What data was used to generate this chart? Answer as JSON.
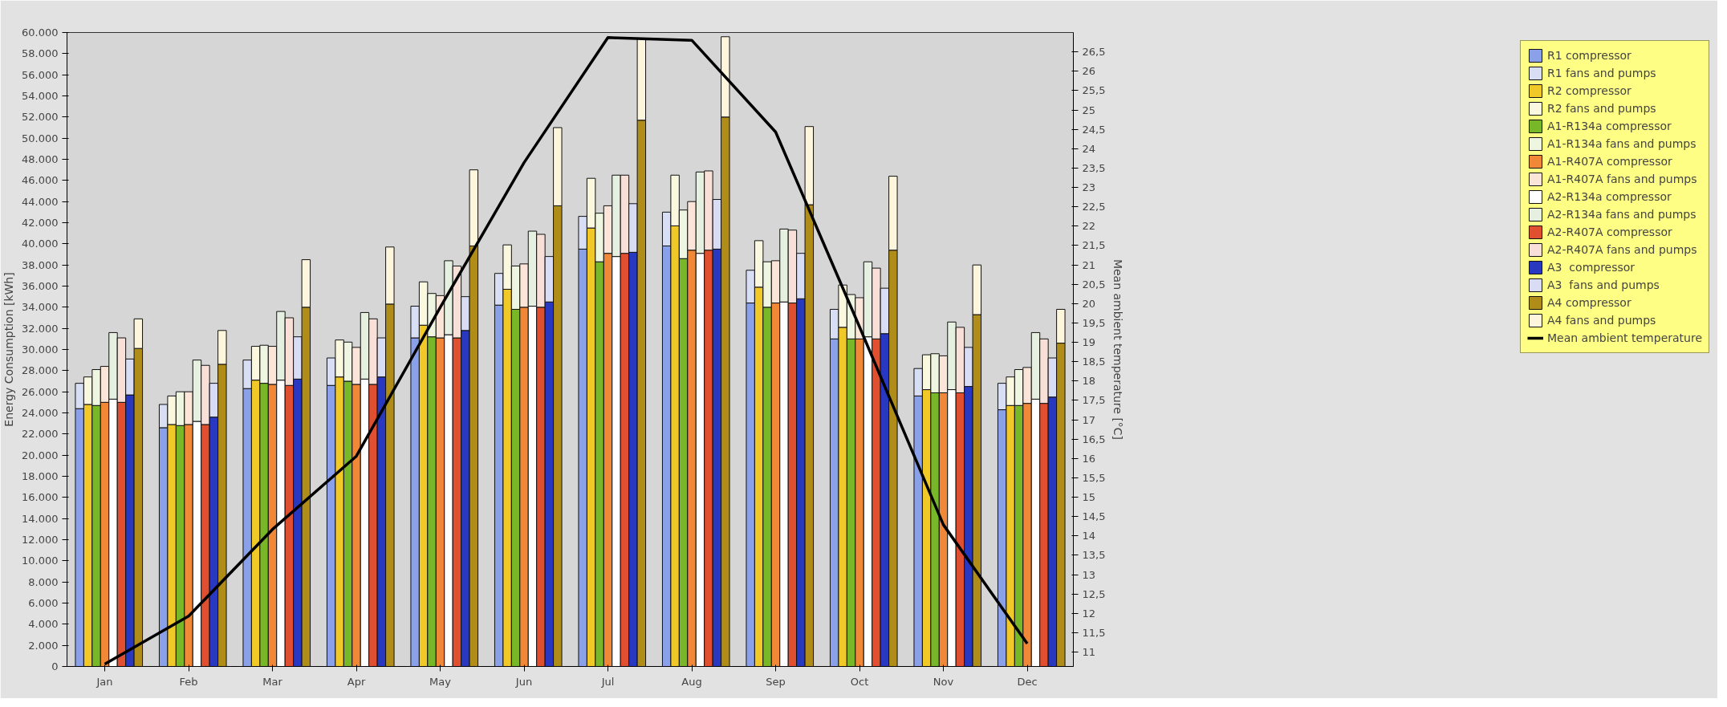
{
  "chart_data": {
    "type": "bar",
    "stacked": true,
    "ylabel": "Energy Consumption [kWh]",
    "y2label": "Mean ambient temperature [°C]",
    "categories": [
      null,
      null,
      null,
      null,
      "Jan",
      null,
      null,
      null,
      null,
      null,
      null,
      null,
      null,
      null,
      "Feb",
      null,
      null,
      null,
      null,
      null,
      null,
      null,
      null,
      null,
      "Mar",
      null,
      null,
      null,
      null,
      null,
      null,
      null,
      null,
      null,
      "Apr",
      null,
      null,
      null,
      null,
      null,
      null,
      null,
      null,
      null,
      "May",
      null,
      null,
      null,
      null,
      null,
      null,
      null,
      null,
      null,
      "Jun",
      null,
      null,
      null,
      null,
      null,
      null,
      null,
      null,
      null,
      "Jul",
      null,
      null,
      null,
      null,
      null,
      null,
      null,
      null,
      null,
      "Aug",
      null,
      null,
      null,
      null,
      null,
      null,
      null,
      null,
      null,
      "Sep",
      null,
      null,
      null,
      null,
      null,
      null,
      null,
      null,
      null,
      "Oct",
      null,
      null,
      null,
      null,
      null,
      null,
      null,
      null,
      null,
      "Nov",
      null,
      null,
      null,
      null,
      null,
      null,
      null,
      null,
      null,
      "Dec",
      null,
      null,
      null,
      null,
      null
    ],
    "ylim": [
      0,
      60000
    ],
    "yticks": [
      {
        "value": 0,
        "label": "0"
      },
      {
        "value": 2000,
        "label": "2.000"
      },
      {
        "value": 4000,
        "label": "4.000"
      },
      {
        "value": 6000,
        "label": "6.000"
      },
      {
        "value": 8000,
        "label": "8.000"
      },
      {
        "value": 10000,
        "label": "10.000"
      },
      {
        "value": 12000,
        "label": "12.000"
      },
      {
        "value": 14000,
        "label": "14.000"
      },
      {
        "value": 16000,
        "label": "16.000"
      },
      {
        "value": 18000,
        "label": "18.000"
      },
      {
        "value": 20000,
        "label": "20.000"
      },
      {
        "value": 22000,
        "label": "22.000"
      },
      {
        "value": 24000,
        "label": "24.000"
      },
      {
        "value": 26000,
        "label": "26.000"
      },
      {
        "value": 28000,
        "label": "28.000"
      },
      {
        "value": 30000,
        "label": "30.000"
      },
      {
        "value": 32000,
        "label": "32.000"
      },
      {
        "value": 34000,
        "label": "34.000"
      },
      {
        "value": 36000,
        "label": "36.000"
      },
      {
        "value": 38000,
        "label": "38.000"
      },
      {
        "value": 40000,
        "label": "40.000"
      },
      {
        "value": 42000,
        "label": "42.000"
      },
      {
        "value": 44000,
        "label": "44.000"
      },
      {
        "value": 46000,
        "label": "46.000"
      },
      {
        "value": 48000,
        "label": "48.000"
      },
      {
        "value": 50000,
        "label": "50.000"
      },
      {
        "value": 52000,
        "label": "52.000"
      },
      {
        "value": 54000,
        "label": "54.000"
      },
      {
        "value": 56000,
        "label": "56.000"
      },
      {
        "value": 58000,
        "label": "58.000"
      },
      {
        "value": 60000,
        "label": "60.000"
      }
    ],
    "y2lim": [
      10.63,
      27.0
    ],
    "y2ticks": [
      11,
      {
        "value": 11.5,
        "label": "11,5"
      },
      12,
      {
        "value": 12.5,
        "label": "12,5"
      },
      13,
      {
        "value": 13.5,
        "label": "13,5"
      },
      14,
      {
        "value": 14.5,
        "label": "14,5"
      },
      15,
      {
        "value": 15.5,
        "label": "15,5"
      },
      16,
      {
        "value": 16.5,
        "label": "16,5"
      },
      17,
      {
        "value": 17.5,
        "label": "17,5"
      },
      18,
      {
        "value": 18.5,
        "label": "18,5"
      },
      19,
      {
        "value": 19.5,
        "label": "19,5"
      },
      20,
      {
        "value": 20.5,
        "label": "20,5"
      },
      21,
      {
        "value": 21.5,
        "label": "21,5"
      },
      22,
      {
        "value": 22.5,
        "label": "22,5"
      },
      23,
      {
        "value": 23.5,
        "label": "23,5"
      },
      24,
      {
        "value": 24.5,
        "label": "24,5"
      },
      25,
      {
        "value": 25.5,
        "label": "25,5"
      },
      26,
      {
        "value": 26.5,
        "label": "26,5"
      }
    ],
    "grid": false,
    "legend": "right",
    "series": [
      {
        "name": "R1 compressor",
        "color": "#8aa0e8",
        "values": [
          null,
          24400,
          null,
          null,
          null,
          null,
          null,
          null,
          null,
          null,
          null,
          22600,
          null,
          null,
          null,
          null,
          null,
          null,
          null,
          null,
          null,
          26300,
          null,
          null,
          null,
          null,
          null,
          null,
          null,
          null,
          null,
          26600,
          null,
          null,
          null,
          null,
          null,
          null,
          null,
          null,
          null,
          31100,
          null,
          null,
          null,
          null,
          null,
          null,
          null,
          null,
          null,
          34200,
          null,
          null,
          null,
          null,
          null,
          null,
          null,
          null,
          null,
          39500,
          null,
          null,
          null,
          null,
          null,
          null,
          null,
          null,
          null,
          39800,
          null,
          null,
          null,
          null,
          null,
          null,
          null,
          null,
          null,
          34400,
          null,
          null,
          null,
          null,
          null,
          null,
          null,
          null,
          null,
          31000,
          null,
          null,
          null,
          null,
          null,
          null,
          null,
          null,
          null,
          25600,
          null,
          null,
          null,
          null,
          null,
          null,
          null,
          null,
          null,
          24300,
          null,
          null,
          null,
          null,
          null,
          null,
          null,
          null
        ]
      },
      {
        "name": "R1 fans and pumps",
        "color": "#d8dff5",
        "values": [
          null,
          2400,
          null,
          null,
          null,
          null,
          null,
          null,
          null,
          null,
          null,
          2200,
          null,
          null,
          null,
          null,
          null,
          null,
          null,
          null,
          null,
          2700,
          null,
          null,
          null,
          null,
          null,
          null,
          null,
          null,
          null,
          2600,
          null,
          null,
          null,
          null,
          null,
          null,
          null,
          null,
          null,
          3000,
          null,
          null,
          null,
          null,
          null,
          null,
          null,
          null,
          null,
          3000,
          null,
          null,
          null,
          null,
          null,
          null,
          null,
          null,
          null,
          3100,
          null,
          null,
          null,
          null,
          null,
          null,
          null,
          null,
          null,
          3200,
          null,
          null,
          null,
          null,
          null,
          null,
          null,
          null,
          null,
          3100,
          null,
          null,
          null,
          null,
          null,
          null,
          null,
          null,
          null,
          2800,
          null,
          null,
          null,
          null,
          null,
          null,
          null,
          null,
          null,
          2600,
          null,
          null,
          null,
          null,
          null,
          null,
          null,
          null,
          null,
          2500,
          null,
          null,
          null,
          null,
          null,
          null,
          null,
          null
        ]
      },
      {
        "name": "R2 compressor",
        "color": "#f0c828",
        "values": [
          null,
          null,
          24800,
          null,
          null,
          null,
          null,
          null,
          null,
          null,
          null,
          null,
          22900,
          null,
          null,
          null,
          null,
          null,
          null,
          null,
          null,
          null,
          27100,
          null,
          null,
          null,
          null,
          null,
          null,
          null,
          null,
          null,
          27400,
          null,
          null,
          null,
          null,
          null,
          null,
          null,
          null,
          null,
          32300,
          null,
          null,
          null,
          null,
          null,
          null,
          null,
          null,
          null,
          35700,
          null,
          null,
          null,
          null,
          null,
          null,
          null,
          null,
          null,
          41500,
          null,
          null,
          null,
          null,
          null,
          null,
          null,
          null,
          null,
          41700,
          null,
          null,
          null,
          null,
          null,
          null,
          null,
          null,
          null,
          35900,
          null,
          null,
          null,
          null,
          null,
          null,
          null,
          null,
          null,
          32100,
          null,
          null,
          null,
          null,
          null,
          null,
          null,
          null,
          null,
          26200,
          null,
          null,
          null,
          null,
          null,
          null,
          null,
          null,
          null,
          24700,
          null,
          null,
          null,
          null,
          null,
          null,
          null
        ]
      },
      {
        "name": "R2 fans and pumps",
        "color": "#fbf8e0",
        "values": [
          null,
          null,
          2600,
          null,
          null,
          null,
          null,
          null,
          null,
          null,
          null,
          null,
          2700,
          null,
          null,
          null,
          null,
          null,
          null,
          null,
          null,
          null,
          3200,
          null,
          null,
          null,
          null,
          null,
          null,
          null,
          null,
          null,
          3500,
          null,
          null,
          null,
          null,
          null,
          null,
          null,
          null,
          null,
          4100,
          null,
          null,
          null,
          null,
          null,
          null,
          null,
          null,
          null,
          4200,
          null,
          null,
          null,
          null,
          null,
          null,
          null,
          null,
          null,
          4700,
          null,
          null,
          null,
          null,
          null,
          null,
          null,
          null,
          null,
          4800,
          null,
          null,
          null,
          null,
          null,
          null,
          null,
          null,
          null,
          4400,
          null,
          null,
          null,
          null,
          null,
          null,
          null,
          null,
          null,
          4000,
          null,
          null,
          null,
          null,
          null,
          null,
          null,
          null,
          null,
          3300,
          null,
          null,
          null,
          null,
          null,
          null,
          null,
          null,
          null,
          2700,
          null,
          null,
          null,
          null,
          null,
          null,
          null
        ]
      },
      {
        "name": "A1-R134a compressor",
        "color": "#78b828",
        "values": [
          null,
          null,
          null,
          24700,
          null,
          null,
          null,
          null,
          null,
          null,
          null,
          null,
          null,
          22800,
          null,
          null,
          null,
          null,
          null,
          null,
          null,
          null,
          null,
          26800,
          null,
          null,
          null,
          null,
          null,
          null,
          null,
          null,
          null,
          27000,
          null,
          null,
          null,
          null,
          null,
          null,
          null,
          null,
          null,
          31200,
          null,
          null,
          null,
          null,
          null,
          null,
          null,
          null,
          null,
          33800,
          null,
          null,
          null,
          null,
          null,
          null,
          null,
          null,
          null,
          38300,
          null,
          null,
          null,
          null,
          null,
          null,
          null,
          null,
          null,
          38600,
          null,
          null,
          null,
          null,
          null,
          null,
          null,
          null,
          null,
          34000,
          null,
          null,
          null,
          null,
          null,
          null,
          null,
          null,
          null,
          31000,
          null,
          null,
          null,
          null,
          null,
          null,
          null,
          null,
          null,
          25900,
          null,
          null,
          null,
          null,
          null,
          null,
          null,
          null,
          null,
          24700,
          null,
          null,
          null,
          null,
          null,
          null
        ]
      },
      {
        "name": "A1-R134a fans and pumps",
        "color": "#eef5e0",
        "values": [
          null,
          null,
          null,
          3400,
          null,
          null,
          null,
          null,
          null,
          null,
          null,
          null,
          null,
          3200,
          null,
          null,
          null,
          null,
          null,
          null,
          null,
          null,
          null,
          3600,
          null,
          null,
          null,
          null,
          null,
          null,
          null,
          null,
          null,
          3700,
          null,
          null,
          null,
          null,
          null,
          null,
          null,
          null,
          null,
          4100,
          null,
          null,
          null,
          null,
          null,
          null,
          null,
          null,
          null,
          4100,
          null,
          null,
          null,
          null,
          null,
          null,
          null,
          null,
          null,
          4600,
          null,
          null,
          null,
          null,
          null,
          null,
          null,
          null,
          null,
          4600,
          null,
          null,
          null,
          null,
          null,
          null,
          null,
          null,
          null,
          4300,
          null,
          null,
          null,
          null,
          null,
          null,
          null,
          null,
          null,
          4200,
          null,
          null,
          null,
          null,
          null,
          null,
          null,
          null,
          null,
          3700,
          null,
          null,
          null,
          null,
          null,
          null,
          null,
          null,
          null,
          3400,
          null,
          null,
          null,
          null,
          null,
          null
        ]
      },
      {
        "name": "A1-R407A compressor",
        "color": "#f08838",
        "values": [
          null,
          null,
          null,
          null,
          25000,
          null,
          null,
          null,
          null,
          null,
          null,
          null,
          null,
          null,
          22900,
          null,
          null,
          null,
          null,
          null,
          null,
          null,
          null,
          null,
          26700,
          null,
          null,
          null,
          null,
          null,
          null,
          null,
          null,
          null,
          26700,
          null,
          null,
          null,
          null,
          null,
          null,
          null,
          null,
          null,
          31100,
          null,
          null,
          null,
          null,
          null,
          null,
          null,
          null,
          null,
          34000,
          null,
          null,
          null,
          null,
          null,
          null,
          null,
          null,
          null,
          39100,
          null,
          null,
          null,
          null,
          null,
          null,
          null,
          null,
          null,
          39400,
          null,
          null,
          null,
          null,
          null,
          null,
          null,
          null,
          null,
          34400,
          null,
          null,
          null,
          null,
          null,
          null,
          null,
          null,
          null,
          31000,
          null,
          null,
          null,
          null,
          null,
          null,
          null,
          null,
          null,
          25900,
          null,
          null,
          null,
          null,
          null,
          null,
          null,
          null,
          null,
          24900,
          null,
          null,
          null,
          null,
          null
        ]
      },
      {
        "name": "A1-R407A fans and pumps",
        "color": "#fbe5d8",
        "values": [
          null,
          null,
          null,
          null,
          3400,
          null,
          null,
          null,
          null,
          null,
          null,
          null,
          null,
          null,
          3100,
          null,
          null,
          null,
          null,
          null,
          null,
          null,
          null,
          null,
          3600,
          null,
          null,
          null,
          null,
          null,
          null,
          null,
          null,
          null,
          3500,
          null,
          null,
          null,
          null,
          null,
          null,
          null,
          null,
          null,
          4000,
          null,
          null,
          null,
          null,
          null,
          null,
          null,
          null,
          null,
          4100,
          null,
          null,
          null,
          null,
          null,
          null,
          null,
          null,
          null,
          4500,
          null,
          null,
          null,
          null,
          null,
          null,
          null,
          null,
          null,
          4600,
          null,
          null,
          null,
          null,
          null,
          null,
          null,
          null,
          null,
          4000,
          null,
          null,
          null,
          null,
          null,
          null,
          null,
          null,
          null,
          3900,
          null,
          null,
          null,
          null,
          null,
          null,
          null,
          null,
          null,
          3500,
          null,
          null,
          null,
          null,
          null,
          null,
          null,
          null,
          null,
          3400,
          null,
          null,
          null,
          null,
          null
        ]
      },
      {
        "name": "A2-R134a compressor",
        "color": "#ffffff",
        "values": [
          null,
          null,
          null,
          null,
          null,
          25300,
          null,
          null,
          null,
          null,
          null,
          null,
          null,
          null,
          null,
          23200,
          null,
          null,
          null,
          null,
          null,
          null,
          null,
          null,
          null,
          27100,
          null,
          null,
          null,
          null,
          null,
          null,
          null,
          null,
          null,
          27200,
          null,
          null,
          null,
          null,
          null,
          null,
          null,
          null,
          null,
          31400,
          null,
          null,
          null,
          null,
          null,
          null,
          null,
          null,
          null,
          34100,
          null,
          null,
          null,
          null,
          null,
          null,
          null,
          null,
          null,
          38800,
          null,
          null,
          null,
          null,
          null,
          null,
          null,
          null,
          null,
          39100,
          null,
          null,
          null,
          null,
          null,
          null,
          null,
          null,
          null,
          34500,
          null,
          null,
          null,
          null,
          null,
          null,
          null,
          null,
          null,
          31200,
          null,
          null,
          null,
          null,
          null,
          null,
          null,
          null,
          null,
          26200,
          null,
          null,
          null,
          null,
          null,
          null,
          null,
          null,
          null,
          25300,
          null,
          null,
          null,
          null
        ]
      },
      {
        "name": "A2-R134a fans and pumps",
        "color": "#e5f0e0",
        "values": [
          null,
          null,
          null,
          null,
          null,
          6300,
          null,
          null,
          null,
          null,
          null,
          null,
          null,
          null,
          null,
          5800,
          null,
          null,
          null,
          null,
          null,
          null,
          null,
          null,
          null,
          6500,
          null,
          null,
          null,
          null,
          null,
          null,
          null,
          null,
          null,
          6300,
          null,
          null,
          null,
          null,
          null,
          null,
          null,
          null,
          null,
          7000,
          null,
          null,
          null,
          null,
          null,
          null,
          null,
          null,
          null,
          7100,
          null,
          null,
          null,
          null,
          null,
          null,
          null,
          null,
          null,
          7700,
          null,
          null,
          null,
          null,
          null,
          null,
          null,
          null,
          null,
          7700,
          null,
          null,
          null,
          null,
          null,
          null,
          null,
          null,
          null,
          6900,
          null,
          null,
          null,
          null,
          null,
          null,
          null,
          null,
          null,
          7100,
          null,
          null,
          null,
          null,
          null,
          null,
          null,
          null,
          null,
          6400,
          null,
          null,
          null,
          null,
          null,
          null,
          null,
          null,
          null,
          6300,
          null,
          null,
          null,
          null
        ]
      },
      {
        "name": "A2-R407A compressor",
        "color": "#e05030",
        "values": [
          null,
          null,
          null,
          null,
          null,
          null,
          25000,
          null,
          null,
          null,
          null,
          null,
          null,
          null,
          null,
          null,
          22900,
          null,
          null,
          null,
          null,
          null,
          null,
          null,
          null,
          null,
          26600,
          null,
          null,
          null,
          null,
          null,
          null,
          null,
          null,
          null,
          26700,
          null,
          null,
          null,
          null,
          null,
          null,
          null,
          null,
          null,
          31100,
          null,
          null,
          null,
          null,
          null,
          null,
          null,
          null,
          null,
          34000,
          null,
          null,
          null,
          null,
          null,
          null,
          null,
          null,
          null,
          39100,
          null,
          null,
          null,
          null,
          null,
          null,
          null,
          null,
          null,
          39400,
          null,
          null,
          null,
          null,
          null,
          null,
          null,
          null,
          null,
          34400,
          null,
          null,
          null,
          null,
          null,
          null,
          null,
          null,
          null,
          31000,
          null,
          null,
          null,
          null,
          null,
          null,
          null,
          null,
          null,
          25900,
          null,
          null,
          null,
          null,
          null,
          null,
          null,
          null,
          null,
          24900,
          null,
          null,
          null
        ]
      },
      {
        "name": "A2-R407A fans and pumps",
        "color": "#f8e0d8",
        "values": [
          null,
          null,
          null,
          null,
          null,
          null,
          6100,
          null,
          null,
          null,
          null,
          null,
          null,
          null,
          null,
          null,
          5600,
          null,
          null,
          null,
          null,
          null,
          null,
          null,
          null,
          null,
          6400,
          null,
          null,
          null,
          null,
          null,
          null,
          null,
          null,
          null,
          6200,
          null,
          null,
          null,
          null,
          null,
          null,
          null,
          null,
          null,
          6800,
          null,
          null,
          null,
          null,
          null,
          null,
          null,
          null,
          null,
          6900,
          null,
          null,
          null,
          null,
          null,
          null,
          null,
          null,
          null,
          7400,
          null,
          null,
          null,
          null,
          null,
          null,
          null,
          null,
          null,
          7500,
          null,
          null,
          null,
          null,
          null,
          null,
          null,
          null,
          null,
          6900,
          null,
          null,
          null,
          null,
          null,
          null,
          null,
          null,
          null,
          6700,
          null,
          null,
          null,
          null,
          null,
          null,
          null,
          null,
          null,
          6200,
          null,
          null,
          null,
          null,
          null,
          null,
          null,
          null,
          null,
          6100,
          null,
          null,
          null
        ]
      },
      {
        "name": "A3  compressor",
        "color": "#2838c0",
        "values": [
          null,
          null,
          null,
          null,
          null,
          null,
          null,
          25700,
          null,
          null,
          null,
          null,
          null,
          null,
          null,
          null,
          null,
          23600,
          null,
          null,
          null,
          null,
          null,
          null,
          null,
          null,
          null,
          27200,
          null,
          null,
          null,
          null,
          null,
          null,
          null,
          null,
          null,
          27400,
          null,
          null,
          null,
          null,
          null,
          null,
          null,
          null,
          null,
          31800,
          null,
          null,
          null,
          null,
          null,
          null,
          null,
          null,
          null,
          34500,
          null,
          null,
          null,
          null,
          null,
          null,
          null,
          null,
          null,
          39200,
          null,
          null,
          null,
          null,
          null,
          null,
          null,
          null,
          null,
          39500,
          null,
          null,
          null,
          null,
          null,
          null,
          null,
          null,
          null,
          34800,
          null,
          null,
          null,
          null,
          null,
          null,
          null,
          null,
          null,
          31500,
          null,
          null,
          null,
          null,
          null,
          null,
          null,
          null,
          null,
          26500,
          null,
          null,
          null,
          null,
          null,
          null,
          null,
          null,
          null,
          25500,
          null,
          null
        ]
      },
      {
        "name": "A3  fans and pumps",
        "color": "#d8dcf5",
        "values": [
          null,
          null,
          null,
          null,
          null,
          null,
          null,
          3400,
          null,
          null,
          null,
          null,
          null,
          null,
          null,
          null,
          null,
          3200,
          null,
          null,
          null,
          null,
          null,
          null,
          null,
          null,
          null,
          4000,
          null,
          null,
          null,
          null,
          null,
          null,
          null,
          null,
          null,
          3700,
          null,
          null,
          null,
          null,
          null,
          null,
          null,
          null,
          null,
          3200,
          null,
          null,
          null,
          null,
          null,
          null,
          null,
          null,
          null,
          4300,
          null,
          null,
          null,
          null,
          null,
          null,
          null,
          null,
          null,
          4600,
          null,
          null,
          null,
          null,
          null,
          null,
          null,
          null,
          null,
          4700,
          null,
          null,
          null,
          null,
          null,
          null,
          null,
          null,
          null,
          4300,
          null,
          null,
          null,
          null,
          null,
          null,
          null,
          null,
          null,
          4300,
          null,
          null,
          null,
          null,
          null,
          null,
          null,
          null,
          null,
          3700,
          null,
          null,
          null,
          null,
          null,
          null,
          null,
          null,
          null,
          3700,
          null,
          null
        ]
      },
      {
        "name": "A4 compressor",
        "color": "#b08c18",
        "values": [
          null,
          null,
          null,
          null,
          null,
          null,
          null,
          null,
          30100,
          null,
          null,
          null,
          null,
          null,
          null,
          null,
          null,
          null,
          28600,
          null,
          null,
          null,
          null,
          null,
          null,
          null,
          null,
          null,
          34000,
          null,
          null,
          null,
          null,
          null,
          null,
          null,
          null,
          null,
          34300,
          null,
          null,
          null,
          null,
          null,
          null,
          null,
          null,
          null,
          39800,
          null,
          null,
          null,
          null,
          null,
          null,
          null,
          null,
          null,
          43600,
          null,
          null,
          null,
          null,
          null,
          null,
          null,
          null,
          null,
          51700,
          null,
          null,
          null,
          null,
          null,
          null,
          null,
          null,
          null,
          52000,
          null,
          null,
          null,
          null,
          null,
          null,
          null,
          null,
          null,
          43700,
          null,
          null,
          null,
          null,
          null,
          null,
          null,
          null,
          null,
          39400,
          null,
          null,
          null,
          null,
          null,
          null,
          null,
          null,
          null,
          33300,
          null,
          null,
          null,
          null,
          null,
          null,
          null,
          null,
          null,
          30600,
          null
        ]
      },
      {
        "name": "A4 fans and pumps",
        "color": "#fdf5dc",
        "values": [
          null,
          null,
          null,
          null,
          null,
          null,
          null,
          null,
          2800,
          null,
          null,
          null,
          null,
          null,
          null,
          null,
          null,
          null,
          3200,
          null,
          null,
          null,
          null,
          null,
          null,
          null,
          null,
          null,
          4500,
          null,
          null,
          null,
          null,
          null,
          null,
          null,
          null,
          null,
          5400,
          null,
          null,
          null,
          null,
          null,
          null,
          null,
          null,
          null,
          7200,
          null,
          null,
          null,
          null,
          null,
          null,
          null,
          null,
          null,
          7400,
          null,
          null,
          null,
          null,
          null,
          null,
          null,
          null,
          null,
          7700,
          null,
          null,
          null,
          null,
          null,
          null,
          null,
          null,
          null,
          7600,
          null,
          null,
          null,
          null,
          null,
          null,
          null,
          null,
          null,
          7400,
          null,
          null,
          null,
          null,
          null,
          null,
          null,
          null,
          null,
          7000,
          null,
          null,
          null,
          null,
          null,
          null,
          null,
          null,
          null,
          4700,
          null,
          null,
          null,
          null,
          null,
          null,
          null,
          null,
          null,
          3200,
          null
        ]
      },
      {
        "name": "Mean ambient temperature",
        "type": "line",
        "axis": "y2",
        "color": "#000000",
        "x": [
          "Jan",
          "Feb",
          "Mar",
          "Apr",
          "May",
          "Jun",
          "Jul",
          "Aug",
          "Sep",
          "Oct",
          "Nov",
          "Dec"
        ],
        "values": [
          10.69,
          11.93,
          14.17,
          16.06,
          19.9,
          23.64,
          26.87,
          26.8,
          24.43,
          19.4,
          14.29,
          11.22
        ]
      }
    ]
  }
}
